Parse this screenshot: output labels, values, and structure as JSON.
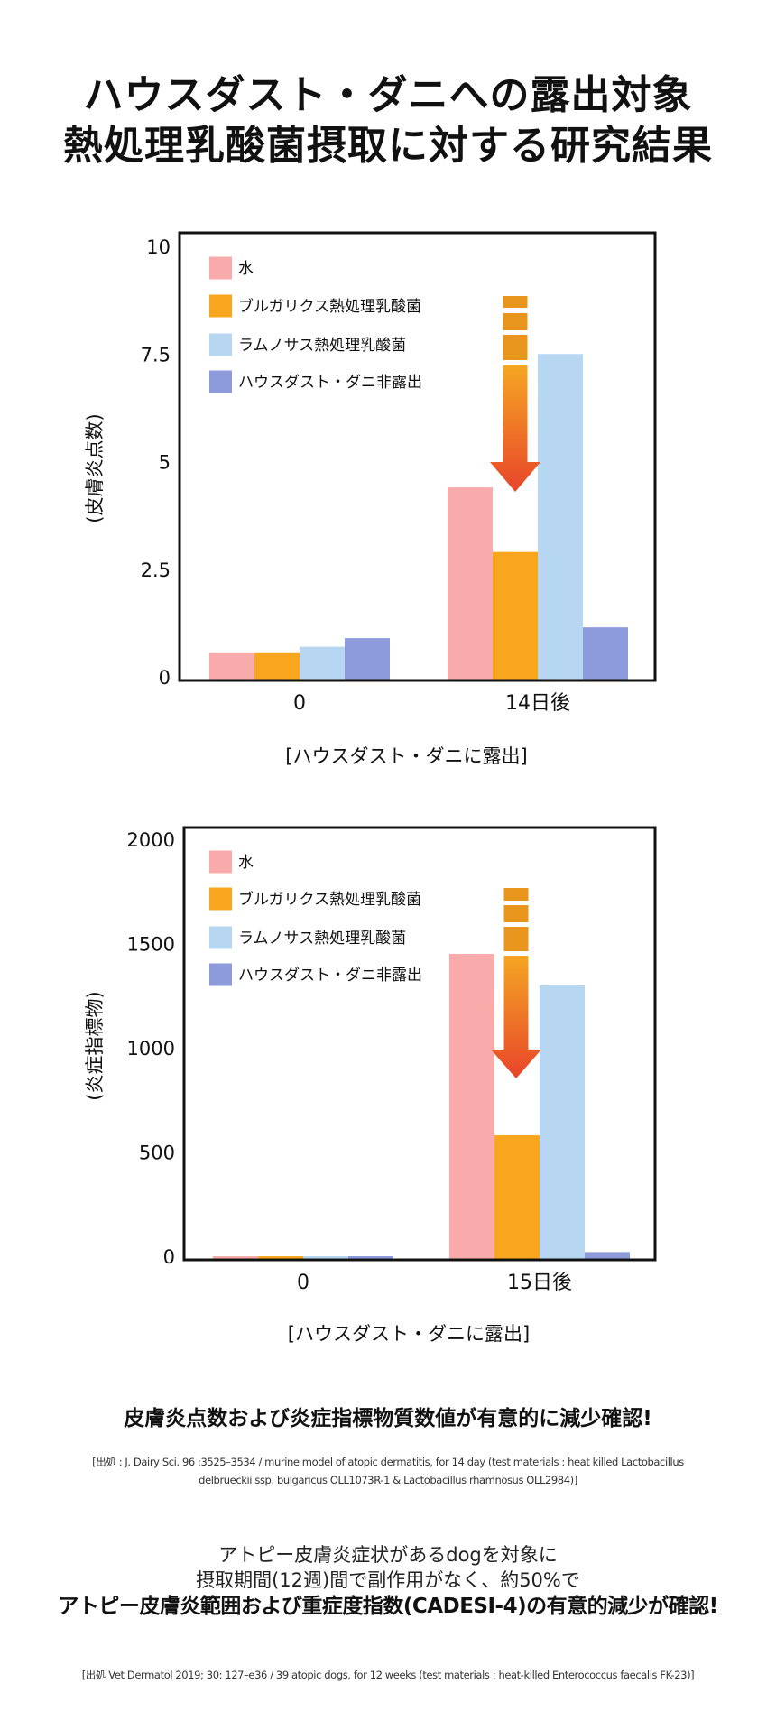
{
  "title": {
    "line1": "ハウスダスト・ダニへの露出対象",
    "line2": "熱処理乳酸菌摂取に対する研究結果"
  },
  "colors": {
    "water": "#f9aaaa",
    "bulgaricus": "#f9a61f",
    "rhamnosus": "#b7d6f2",
    "non_exposed": "#8d9bdc",
    "arrow_top": "#f5a623",
    "arrow_bottom": "#e8452a",
    "arrow_dash": "#e8951e"
  },
  "chart_data": [
    {
      "type": "bar",
      "title": "",
      "ylabel": "(皮膚炎点数)",
      "xlabel": "[ハウスダスト・ダニに露出]",
      "ylim": [
        0,
        10
      ],
      "yticks": [
        "0",
        "2.5",
        "5",
        "7.5",
        "10"
      ],
      "ytick_values": [
        0,
        2.5,
        5,
        7.5,
        10
      ],
      "categories": [
        "0",
        "14日後"
      ],
      "legend_position": "top-left",
      "series": [
        {
          "name": "水",
          "color_key": "water",
          "values": [
            0.55,
            4.4
          ]
        },
        {
          "name": "ブルガリクス熱処理乳酸菌",
          "color_key": "bulgaricus",
          "values": [
            0.55,
            2.9
          ]
        },
        {
          "name": "ラムノサス熱処理乳酸菌",
          "color_key": "rhamnosus",
          "values": [
            0.7,
            7.5
          ]
        },
        {
          "name": "ハウスダスト・ダニ非露出",
          "color_key": "non_exposed",
          "values": [
            0.9,
            1.15
          ]
        }
      ],
      "annotation": "down-arrow over ブルガリクス熱処理乳酸菌 at 14日後"
    },
    {
      "type": "bar",
      "title": "",
      "ylabel": "(炎症指標物)",
      "xlabel": "[ハウスダスト・ダニに露出]",
      "ylim": [
        0,
        2000
      ],
      "yticks": [
        "0",
        "500",
        "1000",
        "1500",
        "2000"
      ],
      "ytick_values": [
        0,
        500,
        1000,
        1500,
        2000
      ],
      "categories": [
        "0",
        "15日後"
      ],
      "legend_position": "top-left",
      "series": [
        {
          "name": "水",
          "color_key": "water",
          "values": [
            0,
            1450
          ]
        },
        {
          "name": "ブルガリクス熱処理乳酸菌",
          "color_key": "bulgaricus",
          "values": [
            0,
            580
          ]
        },
        {
          "name": "ラムノサス熱処理乳酸菌",
          "color_key": "rhamnosus",
          "values": [
            0,
            1300
          ]
        },
        {
          "name": "ハウスダスト・ダニ非露出",
          "color_key": "non_exposed",
          "values": [
            0,
            20
          ]
        }
      ],
      "annotation": "down-arrow over ブルガリクス熱処理乳酸菌 at 15日後"
    }
  ],
  "summary": {
    "headline": "皮膚炎点数および炎症指標物質数値が有意的に減少確認!",
    "citation1_line1": "[出処 : J. Dairy Sci. 96 :3525–3534 / murine model of atopic dermatitis, for 14 day (test materials : heat killed Lactobacillus",
    "citation1_line2": "delbrueckii ssp. bulgaricus OLL1073R-1 & Lactobacillus rhamnosus OLL2984)]",
    "para_line1": "アトピー皮膚炎症状があるdogを対象に",
    "para_line2": "摂取期間(12週)間で副作用がなく、約50%で",
    "para_bold": "アトピー皮膚炎範囲および重症度指数(CADESI-4)の有意的減少が確認!",
    "citation2": "[出処 Vet Dermatol 2019; 30: 127–e36 / 39 atopic dogs, for 12 weeks (test materials : heat-killed Enterococcus faecalis FK-23)]"
  }
}
